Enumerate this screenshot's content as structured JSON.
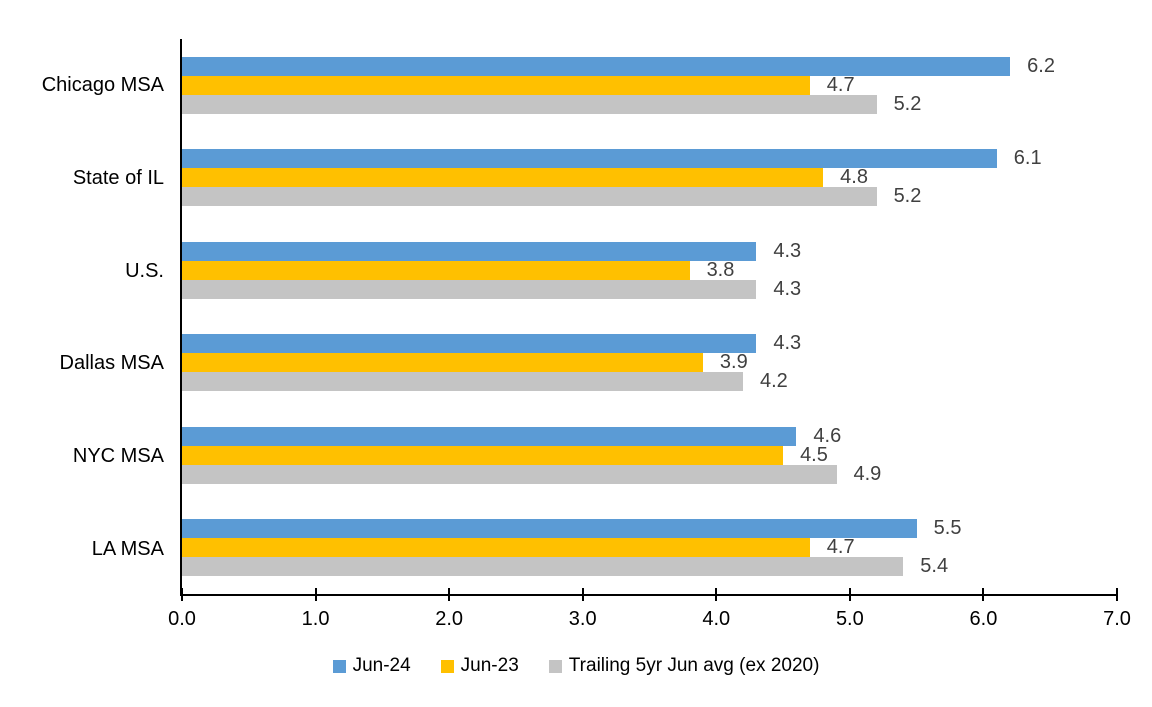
{
  "chart_data": {
    "type": "bar",
    "orientation": "horizontal",
    "title": "",
    "categories": [
      "Chicago MSA",
      "State of IL",
      "U.S.",
      "Dallas MSA",
      "NYC MSA",
      "LA MSA"
    ],
    "series": [
      {
        "name": "Jun-24",
        "color": "#5B9BD5",
        "values": [
          6.2,
          6.1,
          4.3,
          4.3,
          4.6,
          5.5
        ]
      },
      {
        "name": "Jun-23",
        "color": "#FFC000",
        "values": [
          4.7,
          4.8,
          3.8,
          3.9,
          4.5,
          4.7
        ]
      },
      {
        "name": "Trailing 5yr Jun avg (ex 2020)",
        "color": "#C4C4C4",
        "values": [
          5.2,
          5.2,
          4.3,
          4.2,
          4.9,
          5.4
        ]
      }
    ],
    "xlim": [
      0,
      7
    ],
    "x_tick_labels": [
      "0.0",
      "1.0",
      "2.0",
      "3.0",
      "4.0",
      "5.0",
      "6.0",
      "7.0"
    ],
    "value_labels_shown": true,
    "value_label_decimals": 1,
    "grid": false,
    "legend_position": "bottom"
  },
  "style": {
    "value_label_color": "#404040",
    "axis_color": "#000000",
    "text_color": "#000000",
    "background": "#ffffff"
  }
}
